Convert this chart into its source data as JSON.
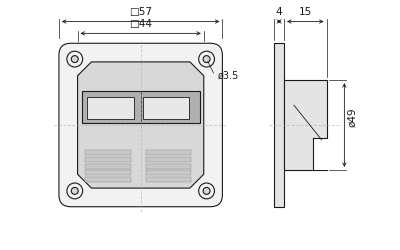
{
  "bg_color": "#ffffff",
  "line_color": "#1a1a1a",
  "gray_outer": "#f2f2f2",
  "gray_body": "#d8d8d8",
  "gray_dark": "#b0b0b0",
  "gray_rib": "#c8c8c8",
  "gray_light": "#e8e8e8",
  "gray_side": "#e4e4e4",
  "dim_color": "#1a1a1a",
  "center_line_color": "#aaaaaa",
  "label_57": "57",
  "label_44": "44",
  "label_35": "3.5",
  "label_49": "49",
  "label_4": "4",
  "label_15": "15",
  "sq_symbol": "□",
  "phi_symbol": "ø"
}
